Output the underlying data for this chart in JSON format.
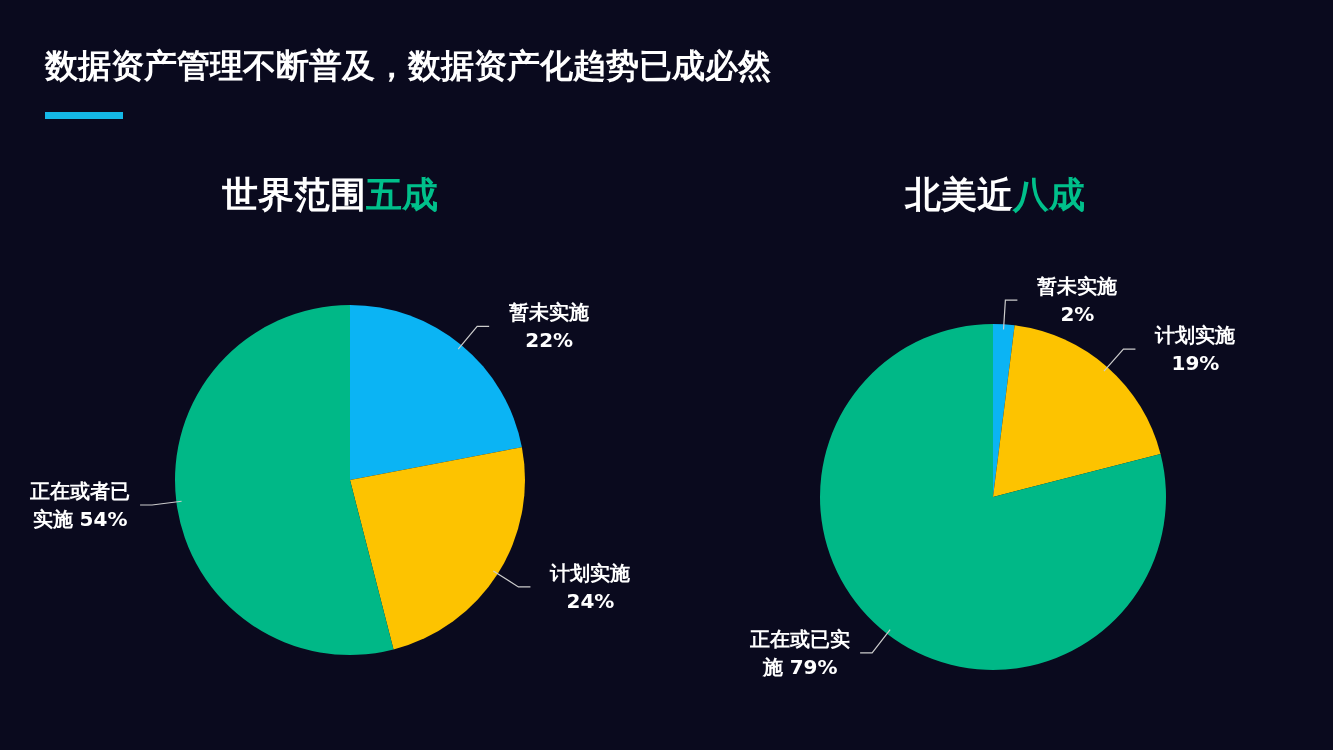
{
  "chart_data": [
    {
      "type": "other",
      "title": "数据资产管理不断普及，数据资产化趋势已成必然"
    },
    {
      "type": "pie",
      "title": "世界范围**五成**",
      "categories": [
        "暂未实施",
        "计划实施",
        "正在或者已实施"
      ],
      "values": [
        22,
        24,
        54
      ],
      "value_labels": [
        "22%",
        "24%",
        "54%"
      ],
      "colors": [
        "#0bb4f4",
        "#fdc300",
        "#00b887"
      ]
    },
    {
      "type": "pie",
      "title": "北美近**八成**",
      "categories": [
        "暂未实施",
        "计划实施",
        "正在或已实施"
      ],
      "values": [
        2,
        19,
        79
      ],
      "value_labels": [
        "2%",
        "19%",
        "79%"
      ],
      "colors": [
        "#0bb4f4",
        "#fdc300",
        "#00b887"
      ]
    }
  ]
}
